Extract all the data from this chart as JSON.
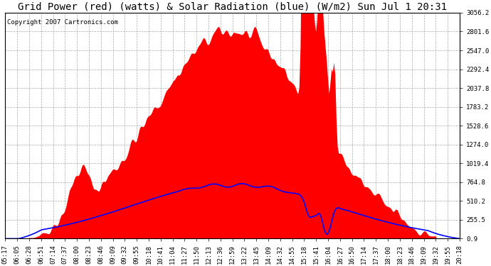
{
  "title": "Grid Power (red) (watts) & Solar Radiation (blue) (W/m2) Sun Jul 1 20:31",
  "copyright_text": "Copyright 2007 Cartronics.com",
  "background_color": "#ffffff",
  "plot_bg_color": "#ffffff",
  "grid_color": "#aaaaaa",
  "ytick_labels": [
    "0.9",
    "255.5",
    "510.2",
    "764.8",
    "1019.4",
    "1274.0",
    "1528.6",
    "1783.2",
    "2037.8",
    "2292.4",
    "2547.0",
    "2801.6",
    "3056.2"
  ],
  "ytick_values": [
    0.9,
    255.5,
    510.2,
    764.8,
    1019.4,
    1274.0,
    1528.6,
    1783.2,
    2037.8,
    2292.4,
    2547.0,
    2801.6,
    3056.2
  ],
  "ymin": 0.9,
  "ymax": 3056.2,
  "xtick_labels": [
    "05:17",
    "06:05",
    "06:28",
    "06:51",
    "07:14",
    "07:37",
    "08:00",
    "08:23",
    "08:46",
    "09:09",
    "09:32",
    "09:55",
    "10:18",
    "10:41",
    "11:04",
    "11:27",
    "11:50",
    "12:13",
    "12:36",
    "12:59",
    "13:22",
    "13:45",
    "14:09",
    "14:32",
    "14:55",
    "15:18",
    "15:41",
    "16:04",
    "16:27",
    "16:50",
    "17:14",
    "17:37",
    "18:00",
    "18:23",
    "18:46",
    "19:09",
    "19:32",
    "19:55",
    "20:18"
  ],
  "title_fontsize": 10,
  "axis_fontsize": 6.5,
  "copyright_fontsize": 6.5,
  "red_fill_color": "#ff0000",
  "blue_line_color": "#0000ff",
  "red_fill_alpha": 1.0,
  "figwidth": 6.9,
  "figheight": 3.75,
  "dpi": 100
}
